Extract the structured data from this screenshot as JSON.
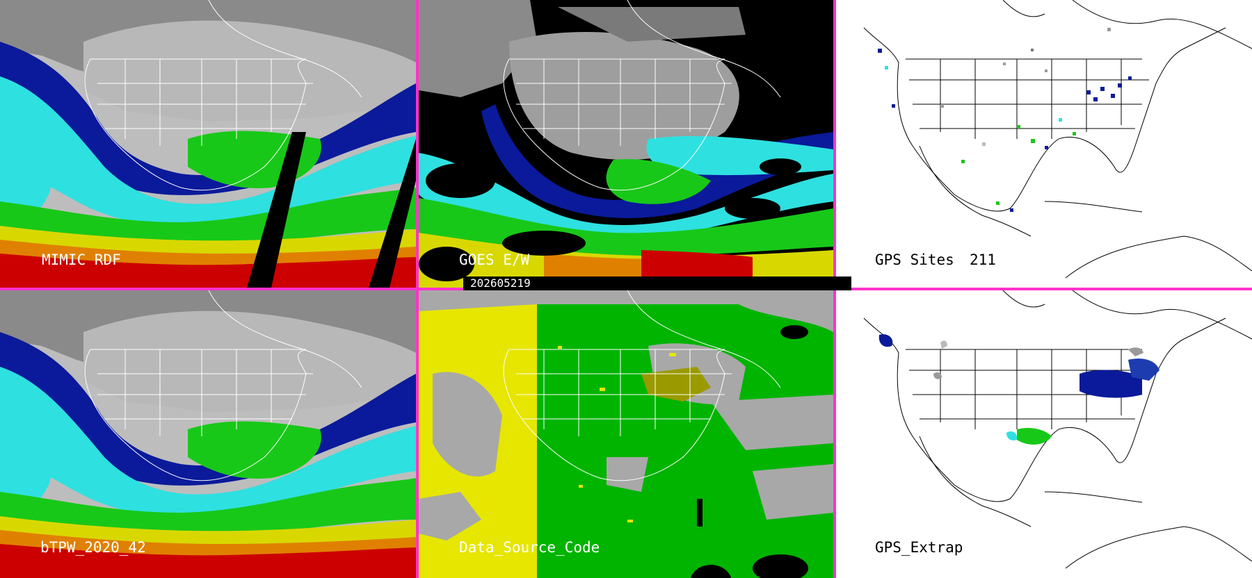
{
  "panels": {
    "mimic": {
      "label": "MIMIC RDF"
    },
    "goes": {
      "label": "GOES E/W"
    },
    "gps_sites": {
      "label": "GPS Sites",
      "count": "211"
    },
    "btpw": {
      "label": "bTPW_2020_42"
    },
    "data_source": {
      "label": "Data_Source_Code"
    },
    "gps_extrap": {
      "label": "GPS_Extrap"
    }
  },
  "timestamp": "202605219",
  "colors": {
    "separator": "#ff33cc",
    "tpw_scale": [
      "#7a7a7a",
      "#0a1a9a",
      "#1c5cd6",
      "#2ee0e0",
      "#18c818",
      "#d8d800",
      "#e08000",
      "#cc0000"
    ],
    "data_source_geo": "#e6e600",
    "data_source_green": "#00b400",
    "data_source_gray": "#a8a8a8"
  }
}
